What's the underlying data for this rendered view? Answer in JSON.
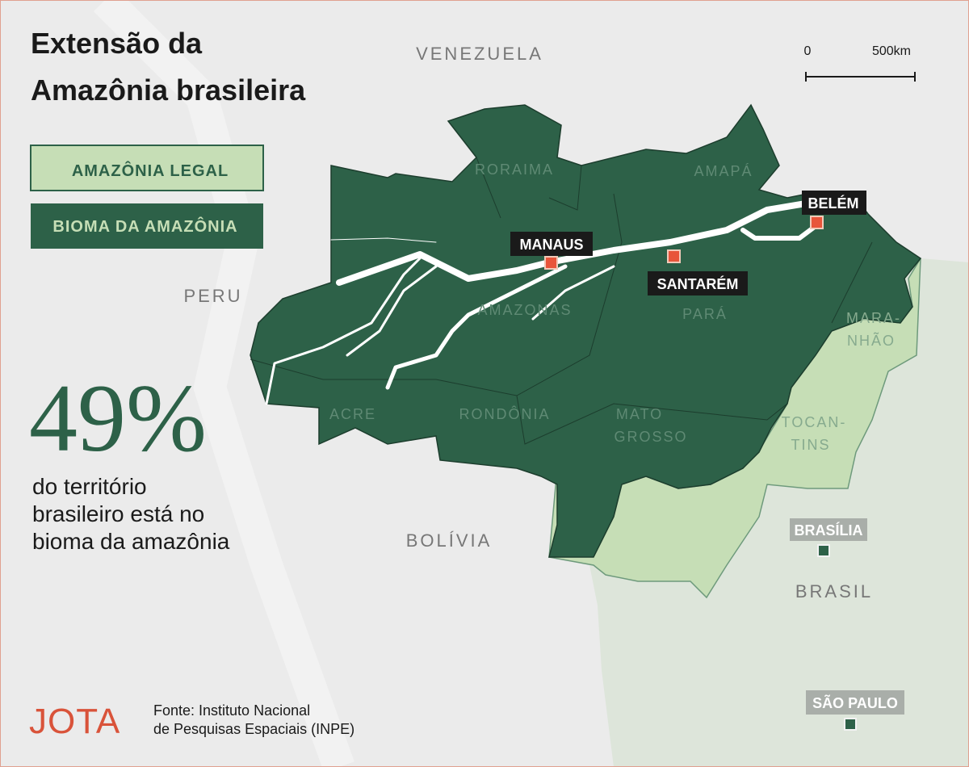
{
  "header": {
    "title": [
      "Extensão da",
      "Amazônia brasileira"
    ]
  },
  "scale": {
    "labels": [
      "0",
      "500km"
    ]
  },
  "legend": {
    "items": [
      "AMAZÔNIA LEGAL",
      "BIOMA DA AMAZÔNIA"
    ]
  },
  "map": {
    "countries": [
      "VENEZUELA",
      "PERU",
      "BOLÍVIA",
      "BRASIL"
    ],
    "states": [
      {
        "lines": [
          "RORAIMA"
        ]
      },
      {
        "lines": [
          "AMAPÁ"
        ]
      },
      {
        "lines": [
          "AMAZONAS"
        ]
      },
      {
        "lines": [
          "PARÁ"
        ]
      },
      {
        "lines": [
          "MARA-",
          "NHÃO"
        ]
      },
      {
        "lines": [
          "ACRE"
        ]
      },
      {
        "lines": [
          "RONDÔNIA"
        ]
      },
      {
        "lines": [
          "MATO",
          "GROSSO"
        ]
      },
      {
        "lines": [
          "TOCAN-",
          "TINS"
        ]
      }
    ],
    "cities": [
      "MANAUS",
      "BELÉM",
      "SANTARÉM",
      "BRASÍLIA",
      "SÃO PAULO"
    ]
  },
  "stat": {
    "value": "49%",
    "text": [
      "do território",
      "brasileiro está no",
      "bioma da amazônia"
    ]
  },
  "footer": {
    "logo": "JOTA",
    "source": [
      "Fonte: Instituto Nacional",
      "de Pesquisas Espaciais (INPE)"
    ]
  }
}
